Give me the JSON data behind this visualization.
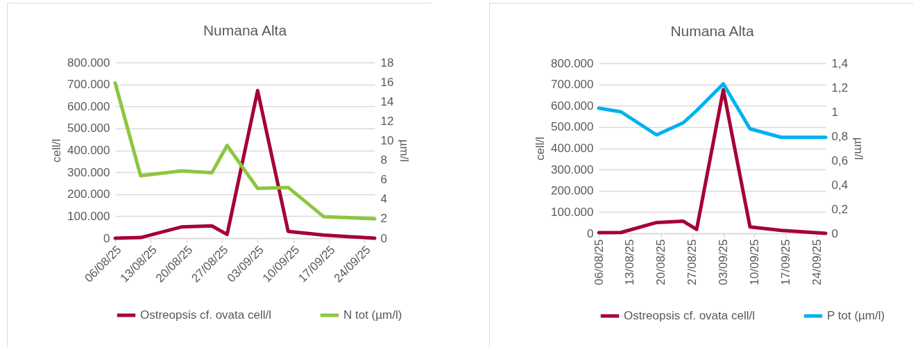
{
  "chart_data": [
    {
      "type": "line",
      "title": "Numana Alta",
      "ylabel": "cell/l",
      "y2label": "µm/l",
      "legend": "bottom",
      "grid": "y",
      "x": [
        "--08-06",
        "--08-11",
        "--08-19",
        "--08-25",
        "--08-28",
        "--09-03",
        "--09-09",
        "--09-16",
        "--09-26"
      ],
      "xlim": [
        "--08-06",
        "--09-26"
      ],
      "xticks": [
        {
          "value": "--08-06",
          "label": "06/08/25"
        },
        {
          "value": "--08-13",
          "label": "13/08/25"
        },
        {
          "value": "--08-20",
          "label": "20/08/25"
        },
        {
          "value": "--08-27",
          "label": "27/08/25"
        },
        {
          "value": "--09-03",
          "label": "03/09/25"
        },
        {
          "value": "--09-10",
          "label": "10/09/25"
        },
        {
          "value": "--09-17",
          "label": "17/09/25"
        },
        {
          "value": "--09-24",
          "label": "24/09/25"
        }
      ],
      "ylim": [
        0,
        800000
      ],
      "yticks": [
        0,
        {
          "value": 100000,
          "label": "100.000"
        },
        {
          "value": 200000,
          "label": "200.000"
        },
        {
          "value": 300000,
          "label": "300.000"
        },
        {
          "value": 400000,
          "label": "400.000"
        },
        {
          "value": 500000,
          "label": "500.000"
        },
        {
          "value": 600000,
          "label": "600.000"
        },
        {
          "value": 700000,
          "label": "700.000"
        },
        {
          "value": 800000,
          "label": "800.000"
        }
      ],
      "y2lim": [
        0,
        18
      ],
      "y2ticks": [
        0,
        2,
        4,
        6,
        8,
        10,
        12,
        14,
        16,
        18
      ],
      "series": [
        {
          "name": "Ostreopsis cf. ovata cell/l",
          "color": "#a50034",
          "values": [
            0,
            3000,
            51000,
            56000,
            17000,
            672000,
            31000,
            14000,
            0
          ]
        },
        {
          "name": "N tot (µm/l)",
          "color": "#8dc63f",
          "axis": "y2",
          "values": [
            15.9,
            6.4,
            6.9,
            6.7,
            9.5,
            5.1,
            5.2,
            2.2,
            2.0
          ]
        }
      ]
    },
    {
      "type": "line",
      "title": "Numana Alta",
      "ylabel": "cell/l",
      "y2label": "µm/l",
      "legend": "bottom",
      "grid": "y",
      "x": [
        "--08-06",
        "--08-11",
        "--08-19",
        "--08-25",
        "--08-28",
        "--09-03",
        "--09-09",
        "--09-16",
        "--09-26"
      ],
      "xlim": [
        "--08-06",
        "--09-26"
      ],
      "xticks": [
        {
          "value": "--08-06",
          "label": "06/08/25"
        },
        {
          "value": "--08-13",
          "label": "13/08/25"
        },
        {
          "value": "--08-20",
          "label": "20/08/25"
        },
        {
          "value": "--08-27",
          "label": "27/08/25"
        },
        {
          "value": "--09-03",
          "label": "03/09/25"
        },
        {
          "value": "--09-10",
          "label": "10/09/25"
        },
        {
          "value": "--09-17",
          "label": "17/09/25"
        },
        {
          "value": "--09-24",
          "label": "24/09/25"
        }
      ],
      "ylim": [
        0,
        800000
      ],
      "yticks": [
        0,
        {
          "value": 100000,
          "label": "100.000"
        },
        {
          "value": 200000,
          "label": "200.000"
        },
        {
          "value": 300000,
          "label": "300.000"
        },
        {
          "value": 400000,
          "label": "400.000"
        },
        {
          "value": 500000,
          "label": "500.000"
        },
        {
          "value": 600000,
          "label": "600.000"
        },
        {
          "value": 700000,
          "label": "700.000"
        },
        {
          "value": 800000,
          "label": "800.000"
        }
      ],
      "y2lim": [
        0,
        1.4
      ],
      "y2ticks": [
        0,
        {
          "value": 0.2,
          "label": "0,2"
        },
        {
          "value": 0.4,
          "label": "0,4"
        },
        {
          "value": 0.6,
          "label": "0,6"
        },
        {
          "value": 0.8,
          "label": "0,8"
        },
        1,
        {
          "value": 1.2,
          "label": "1,2"
        },
        {
          "value": 1.4,
          "label": "1,4"
        }
      ],
      "series": [
        {
          "name": "Ostreopsis cf. ovata cell/l",
          "color": "#a50034",
          "values": [
            3000,
            4000,
            51000,
            57000,
            18000,
            675000,
            30000,
            14000,
            0
          ]
        },
        {
          "name": "P tot (µm/l)",
          "color": "#00b0f0",
          "axis": "y2",
          "values": [
            1.03,
            1.0,
            0.81,
            0.91,
            1.01,
            1.23,
            0.86,
            0.79,
            0.79
          ]
        }
      ]
    }
  ]
}
